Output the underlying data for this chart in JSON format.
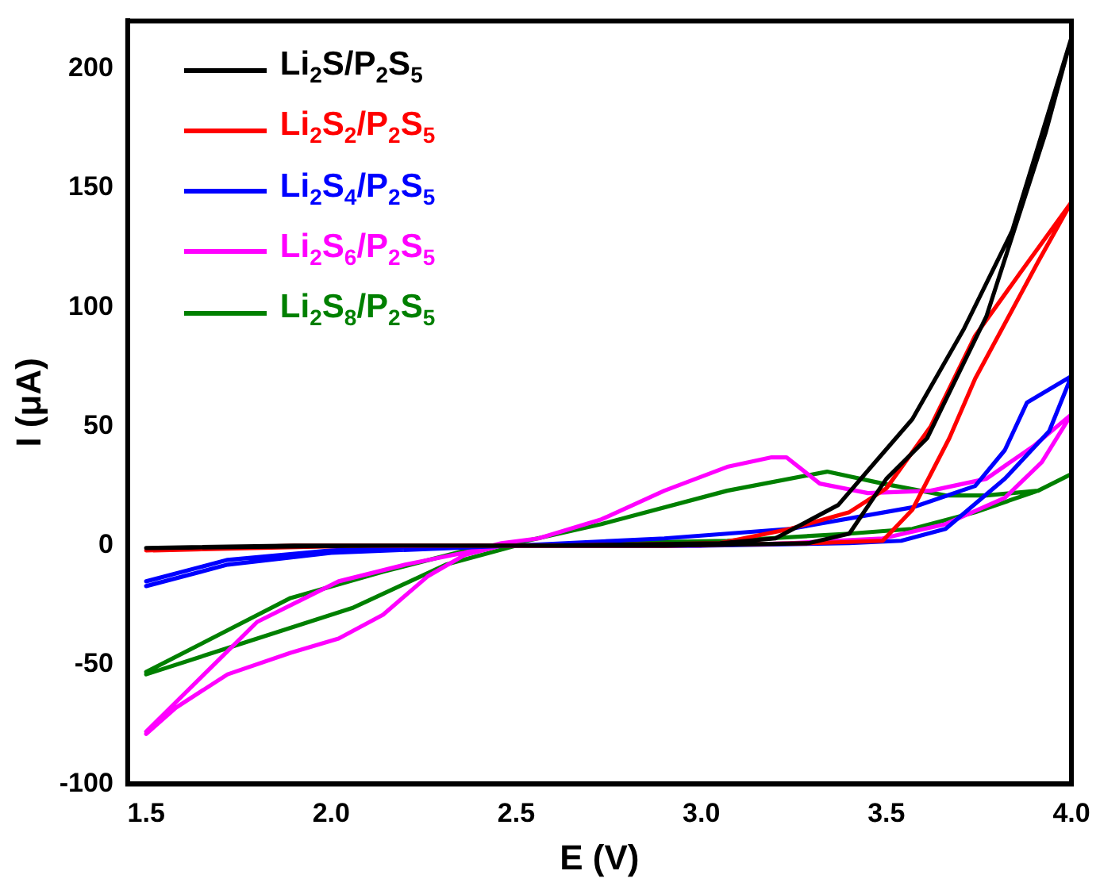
{
  "chart_data": {
    "type": "line",
    "xlabel": "E (V)",
    "ylabel": "I (μA)",
    "xlim": [
      1.45,
      4.0
    ],
    "xticks": [
      1.5,
      {
        "value": 2,
        "label": "2.0"
      },
      2.5,
      {
        "value": 3,
        "label": "3.0"
      },
      3.5,
      {
        "value": 4,
        "label": "4.0"
      }
    ],
    "ylim": [
      -100,
      220
    ],
    "yticks": [
      -100,
      -50,
      0,
      50,
      100,
      150,
      200
    ],
    "grid": false,
    "legend": "top left",
    "marker": "none",
    "line_style": "solid",
    "series": [
      {
        "name": "Li$_{2}$S/P$_{2}$S$_{5}$",
        "color": "#000000",
        "x": [
          1.5,
          1.9,
          2.4,
          2.9,
          3.29,
          3.4,
          3.5,
          3.61,
          3.77,
          3.93,
          4.0,
          3.84,
          3.71,
          3.57,
          3.47,
          3.37,
          3.2,
          3.05,
          2.6,
          2.1,
          1.52
        ],
        "values": [
          -1,
          0,
          0,
          0,
          1,
          5,
          28,
          45,
          96,
          173,
          213,
          132,
          91,
          53,
          35,
          17,
          3,
          1,
          0,
          0,
          -1
        ]
      },
      {
        "name": "Li$_{2}$S$_{2}$/P$_{2}$S$_{5}$",
        "color": "#ff0000",
        "x": [
          1.5,
          1.9,
          2.4,
          2.9,
          3.3,
          3.49,
          3.57,
          3.67,
          3.74,
          3.91,
          4.0,
          3.86,
          3.74,
          3.62,
          3.5,
          3.4,
          3.24,
          3.05,
          2.6,
          2.1,
          1.52
        ],
        "values": [
          -2,
          0,
          0,
          0,
          1,
          2,
          15,
          45,
          70,
          119,
          144,
          114,
          88,
          50,
          24,
          14,
          7,
          1,
          0,
          0,
          -2
        ]
      },
      {
        "name": "Li$_{2}$S$_{4}$/P$_{2}$S$_{5}$",
        "color": "#0000ff",
        "x": [
          1.5,
          1.72,
          2.0,
          2.39,
          3.0,
          3.4,
          3.54,
          3.66,
          3.82,
          3.94,
          4.0,
          3.88,
          3.82,
          3.74,
          3.57,
          3.24,
          2.9,
          2.5,
          2.0,
          1.72,
          1.5
        ],
        "values": [
          -15,
          -6,
          -2,
          0,
          0,
          1,
          2,
          7,
          28,
          48,
          71,
          60,
          40,
          25,
          16,
          7,
          3,
          0,
          -3,
          -8,
          -17
        ]
      },
      {
        "name": "Li$_{2}$S$_{6}$/P$_{2}$S$_{5}$",
        "color": "#ff00ff",
        "x": [
          1.5,
          1.58,
          1.72,
          1.89,
          2.02,
          2.14,
          2.26,
          2.36,
          2.46,
          2.7,
          3.0,
          3.24,
          3.49,
          3.66,
          3.82,
          3.92,
          4.0,
          3.9,
          3.77,
          3.62,
          3.45,
          3.32,
          3.23,
          3.19,
          3.07,
          2.9,
          2.73,
          2.56,
          2.46,
          2.36,
          2.2,
          2.02,
          1.8,
          1.65,
          1.5
        ],
        "values": [
          -79,
          -68,
          -54,
          -45,
          -39,
          -29,
          -13,
          -4,
          0,
          0,
          0,
          1,
          3,
          9,
          20,
          35,
          55,
          42,
          28,
          23,
          22,
          26,
          37,
          37,
          33,
          23,
          11,
          3,
          1,
          -3,
          -8,
          -15,
          -32,
          -55,
          -78
        ]
      },
      {
        "name": "Li$_{2}$S$_{8}$/P$_{2}$S$_{5}$",
        "color": "#008000",
        "x": [
          1.5,
          1.72,
          2.06,
          2.31,
          2.5,
          2.73,
          3.07,
          3.4,
          3.57,
          3.74,
          3.91,
          4.0,
          3.91,
          3.77,
          3.66,
          3.49,
          3.34,
          3.07,
          2.73,
          2.5,
          2.39,
          2.14,
          1.89,
          1.5
        ],
        "values": [
          -54,
          -43,
          -26,
          -8,
          0,
          1,
          2,
          5,
          7,
          14,
          23,
          30,
          23,
          21,
          21,
          26,
          31,
          23,
          9,
          1,
          -1,
          -11,
          -22,
          -53
        ]
      }
    ]
  }
}
